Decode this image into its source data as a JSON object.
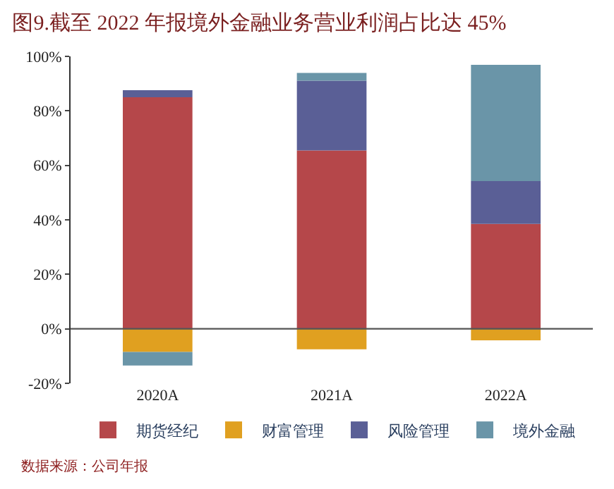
{
  "chart_data": {
    "type": "bar",
    "stacked": true,
    "title": "图9.截至 2022 年报境外金融业务营业利润占比达 45%",
    "categories": [
      "2020A",
      "2021A",
      "2022A"
    ],
    "series": [
      {
        "name": "期货经纪",
        "color": "#b5474a",
        "values": [
          85,
          65.5,
          38.5
        ]
      },
      {
        "name": "财富管理",
        "color": "#e0a020",
        "values": [
          -8.5,
          -7.5,
          -4.2
        ]
      },
      {
        "name": "风险管理",
        "color": "#5a5f96",
        "values": [
          2.6,
          25.6,
          15.7
        ]
      },
      {
        "name": "境外金融",
        "color": "#6a95a8",
        "values": [
          -5,
          2.8,
          42.7
        ]
      }
    ],
    "ylim": [
      -20,
      100
    ],
    "yticks": [
      {
        "value": -20,
        "label": "-20%"
      },
      {
        "value": 0,
        "label": "0%"
      },
      {
        "value": 20,
        "label": "20%"
      },
      {
        "value": 40,
        "label": "40%"
      },
      {
        "value": 60,
        "label": "60%"
      },
      {
        "value": 80,
        "label": "80%"
      },
      {
        "value": 100,
        "label": "100%"
      }
    ],
    "grid": false,
    "legend": "bottom",
    "ref_lines": [
      {
        "axis": "y",
        "value": 0,
        "color": "#555555"
      }
    ],
    "annotations": [
      "数据来源：公司年报"
    ]
  }
}
